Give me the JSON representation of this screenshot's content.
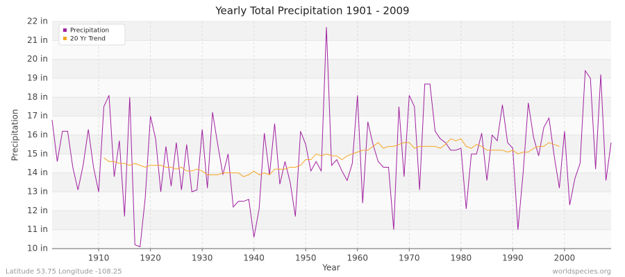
{
  "chart_data": {
    "type": "line",
    "title": "Yearly Total Precipitation 1901 - 2009",
    "x_label": "Year",
    "y_label": "Precipitation",
    "footer_left": "Latitude 53.75 Longitude -108.25",
    "footer_right": "worldspecies.org",
    "x": [
      1901,
      1902,
      1903,
      1904,
      1905,
      1906,
      1907,
      1908,
      1909,
      1910,
      1911,
      1912,
      1913,
      1914,
      1915,
      1916,
      1917,
      1918,
      1919,
      1920,
      1921,
      1922,
      1923,
      1924,
      1925,
      1926,
      1927,
      1928,
      1929,
      1930,
      1931,
      1932,
      1933,
      1934,
      1935,
      1936,
      1937,
      1938,
      1939,
      1940,
      1941,
      1942,
      1943,
      1944,
      1945,
      1946,
      1947,
      1948,
      1949,
      1950,
      1951,
      1952,
      1953,
      1954,
      1955,
      1956,
      1957,
      1958,
      1959,
      1960,
      1961,
      1962,
      1963,
      1964,
      1965,
      1966,
      1967,
      1968,
      1969,
      1970,
      1971,
      1972,
      1973,
      1974,
      1975,
      1976,
      1977,
      1978,
      1979,
      1980,
      1981,
      1982,
      1983,
      1984,
      1985,
      1986,
      1987,
      1988,
      1989,
      1990,
      1991,
      1992,
      1993,
      1994,
      1995,
      1996,
      1997,
      1998,
      1999,
      2000,
      2001,
      2002,
      2003,
      2004,
      2005,
      2006,
      2007,
      2008,
      2009
    ],
    "series": [
      {
        "name": "Precipitation",
        "color": "#a020a0",
        "values": [
          16.8,
          14.6,
          16.2,
          16.2,
          14.3,
          13.1,
          14.4,
          16.3,
          14.3,
          13.0,
          17.5,
          18.1,
          13.8,
          15.7,
          11.7,
          18.0,
          10.2,
          10.1,
          12.7,
          17.0,
          15.8,
          13.0,
          15.4,
          13.3,
          15.6,
          13.1,
          15.5,
          13.0,
          13.1,
          16.3,
          13.2,
          17.2,
          15.5,
          13.9,
          15.0,
          12.2,
          12.5,
          12.5,
          12.6,
          10.6,
          12.1,
          16.1,
          13.9,
          16.6,
          13.4,
          14.6,
          13.5,
          11.7,
          16.2,
          15.5,
          14.1,
          14.6,
          14.1,
          21.7,
          14.4,
          14.7,
          14.1,
          13.6,
          14.5,
          18.1,
          12.4,
          16.7,
          15.5,
          14.6,
          14.3,
          14.3,
          11.0,
          17.5,
          13.8,
          18.1,
          17.5,
          13.1,
          18.7,
          18.7,
          16.2,
          15.8,
          15.6,
          15.2,
          15.2,
          15.3,
          12.1,
          15.0,
          15.0,
          16.1,
          13.6,
          16.0,
          15.7,
          17.6,
          15.6,
          15.3,
          11.0,
          14.0,
          17.7,
          15.9,
          14.9,
          16.4,
          16.9,
          14.9,
          13.2,
          16.2,
          12.3,
          13.7,
          14.5,
          19.4,
          19.0,
          14.2,
          19.2,
          13.6,
          15.6
        ]
      },
      {
        "name": "20 Yr Trend",
        "color": "#f5a623",
        "values": [
          null,
          null,
          null,
          null,
          null,
          null,
          null,
          null,
          null,
          null,
          14.8,
          14.6,
          14.6,
          14.5,
          14.5,
          14.4,
          14.5,
          14.4,
          14.3,
          14.4,
          14.4,
          14.4,
          14.3,
          14.3,
          14.2,
          14.3,
          14.1,
          14.1,
          14.2,
          14.1,
          13.9,
          13.9,
          13.9,
          14.0,
          14.0,
          14.0,
          14.0,
          13.8,
          13.9,
          14.1,
          13.9,
          14.0,
          13.9,
          14.2,
          14.2,
          14.2,
          14.3,
          14.3,
          14.4,
          14.7,
          14.7,
          15.0,
          14.9,
          15.0,
          14.9,
          14.9,
          14.7,
          14.9,
          15.0,
          15.1,
          15.2,
          15.2,
          15.4,
          15.6,
          15.3,
          15.4,
          15.4,
          15.5,
          15.6,
          15.6,
          15.3,
          15.4,
          15.4,
          15.4,
          15.4,
          15.3,
          15.5,
          15.8,
          15.7,
          15.8,
          15.4,
          15.3,
          15.5,
          15.4,
          15.2,
          15.2,
          15.2,
          15.2,
          15.1,
          15.2,
          15.0,
          15.1,
          15.1,
          15.3,
          15.4,
          15.4,
          15.6,
          15.5,
          15.4,
          null,
          null,
          null,
          null,
          null,
          null,
          null,
          null,
          null,
          null
        ]
      }
    ],
    "xlim": [
      1901,
      2009
    ],
    "xticks": [
      1910,
      1920,
      1930,
      1940,
      1950,
      1960,
      1970,
      1980,
      1990,
      2000
    ],
    "ylim": [
      10,
      22
    ],
    "yticks": [
      {
        "value": 10,
        "label": "10 in"
      },
      {
        "value": 11,
        "label": "11 in"
      },
      {
        "value": 12,
        "label": "12 in"
      },
      {
        "value": 13,
        "label": "13 in"
      },
      {
        "value": 14,
        "label": "14 in"
      },
      {
        "value": 15,
        "label": "15 in"
      },
      {
        "value": 16,
        "label": "16 in"
      },
      {
        "value": 17,
        "label": "17 in"
      },
      {
        "value": 18,
        "label": "18 in"
      },
      {
        "value": 19,
        "label": "19 in"
      },
      {
        "value": 20,
        "label": "20 in"
      },
      {
        "value": 21,
        "label": "21 in"
      },
      {
        "value": 22,
        "label": "22 in"
      }
    ],
    "grid": true,
    "legend": "top-left"
  }
}
